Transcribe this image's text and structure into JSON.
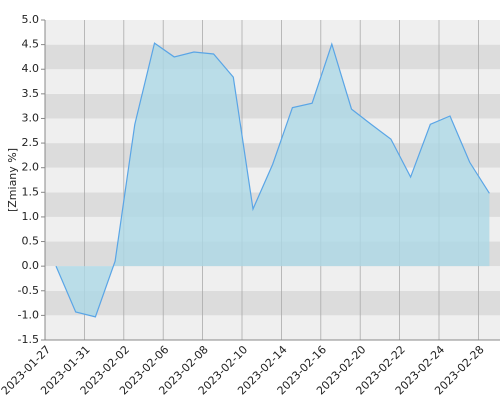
{
  "chart_data": {
    "type": "area",
    "y_label": "[Zmiany %]",
    "categories": [
      "2023-01-27",
      null,
      "2023-01-31",
      null,
      "2023-02-02",
      null,
      "2023-02-06",
      null,
      "2023-02-08",
      null,
      "2023-02-10",
      null,
      "2023-02-14",
      null,
      "2023-02-16",
      null,
      "2023-02-20",
      null,
      "2023-02-22",
      null,
      "2023-02-24",
      null,
      "2023-02-28"
    ],
    "values": [
      0,
      -0.93,
      -1.03,
      0.1,
      2.88,
      4.53,
      4.25,
      4.35,
      4.31,
      3.84,
      1.16,
      2.07,
      3.22,
      3.31,
      4.51,
      3.19,
      2.88,
      2.58,
      1.81,
      2.88,
      3.05,
      2.11,
      1.48
    ],
    "color": "#5aa5e6",
    "fill_color": "#add8e6",
    "ylim": [
      -1.5,
      5.0
    ],
    "yticks": [
      {
        "value": -1.5,
        "label": "-1.5"
      },
      {
        "value": -1.0,
        "label": "-1.0"
      },
      {
        "value": -0.5,
        "label": "-0.5"
      },
      {
        "value": 0,
        "label": "0.0"
      },
      {
        "value": 0.5,
        "label": "0.5"
      },
      {
        "value": 1.0,
        "label": "1.0"
      },
      {
        "value": 1.5,
        "label": "1.5"
      },
      {
        "value": 2.0,
        "label": "2.0"
      },
      {
        "value": 2.5,
        "label": "2.5"
      },
      {
        "value": 3.0,
        "label": "3.0"
      },
      {
        "value": 3.5,
        "label": "3.5"
      },
      {
        "value": 4.0,
        "label": "4.0"
      },
      {
        "value": 4.5,
        "label": "4.5"
      },
      {
        "value": 5.0,
        "label": "5.0"
      }
    ],
    "grid": true
  }
}
